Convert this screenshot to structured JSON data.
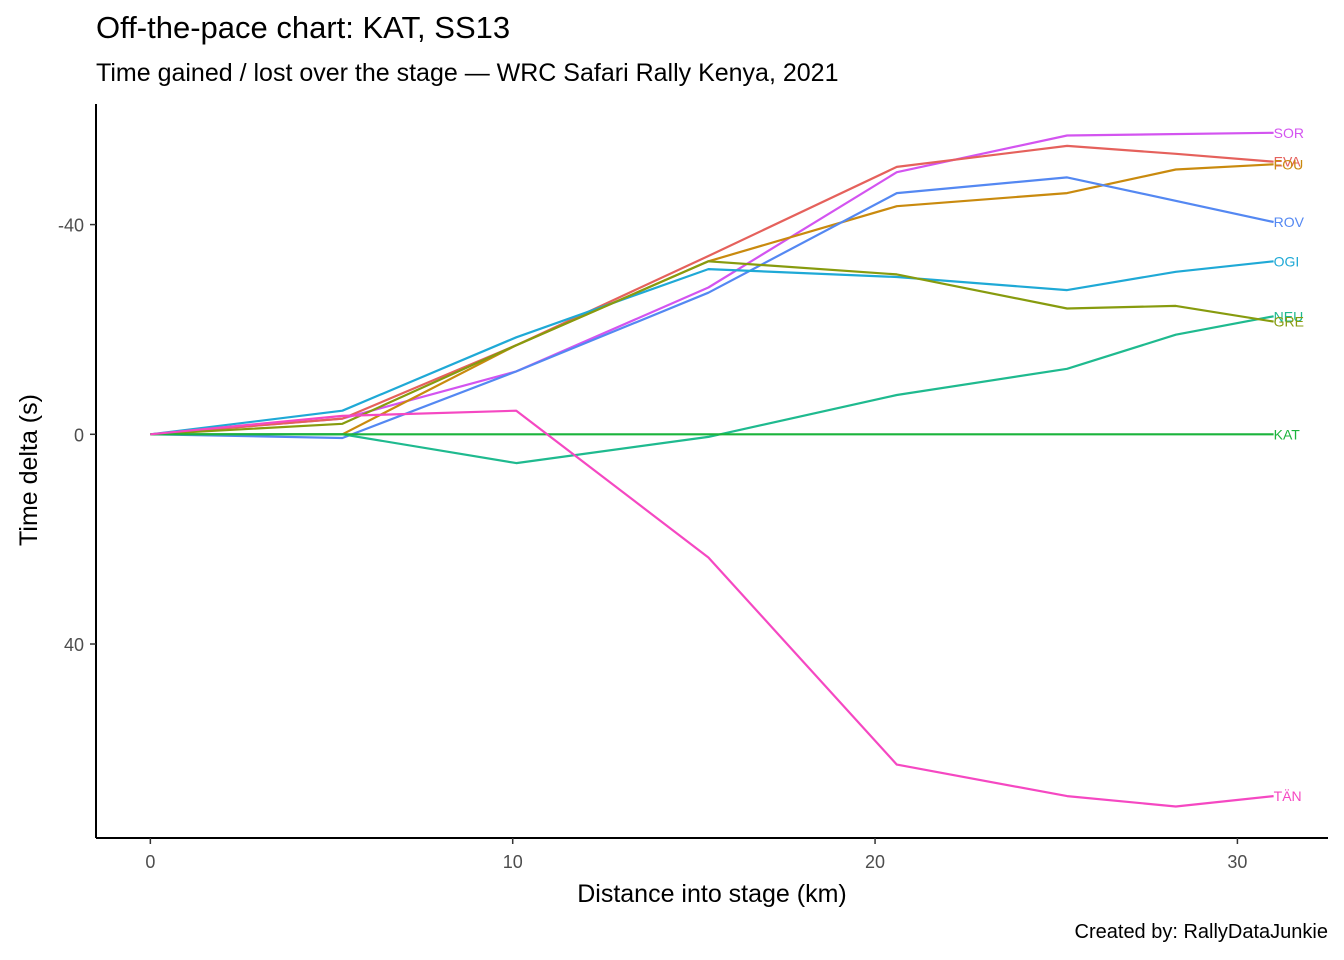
{
  "title": "Off-the-pace chart: KAT, SS13",
  "subtitle": "Time gained / lost over the stage — WRC Safari Rally Kenya, 2021",
  "caption": "Created by: RallyDataJunkie",
  "chart_data": {
    "type": "line",
    "xlabel": "Distance into stage (km)",
    "ylabel": "Time delta (s)",
    "xlim": [
      -1.5,
      32.5
    ],
    "ylim": [
      -63,
      77
    ],
    "y_reversed": true,
    "x_ticks": [
      0,
      10,
      20,
      30
    ],
    "y_ticks": [
      -40,
      0,
      40
    ],
    "grid": false,
    "legend": "end-of-line labels",
    "series": [
      {
        "name": "SOR",
        "color": "#D354F0",
        "x": [
          0,
          5.3,
          10.1,
          15.4,
          20.6,
          25.3,
          31.0
        ],
        "y": [
          0,
          -3,
          -12,
          -28,
          -50,
          -57,
          -57.5
        ]
      },
      {
        "name": "EVA",
        "color": "#E5615C",
        "x": [
          0,
          5.3,
          10.1,
          15.4,
          20.6,
          25.3,
          28.3,
          31.0
        ],
        "y": [
          0,
          -3,
          -17,
          -34,
          -51,
          -55,
          -53.5,
          -52
        ]
      },
      {
        "name": "FOU",
        "color": "#C98A0E",
        "x": [
          0,
          5.3,
          10.1,
          15.4,
          20.6,
          25.3,
          28.3,
          31.0
        ],
        "y": [
          0,
          0,
          -17,
          -33,
          -43.5,
          -46,
          -50.5,
          -51.5
        ]
      },
      {
        "name": "ROV",
        "color": "#5488F2",
        "x": [
          0,
          5.3,
          10.1,
          15.4,
          20.6,
          25.3,
          31.0
        ],
        "y": [
          0,
          0.7,
          -12,
          -27,
          -46,
          -49,
          -40.5
        ]
      },
      {
        "name": "OGI",
        "color": "#1FA9D6",
        "x": [
          0,
          5.3,
          10.1,
          15.4,
          20.6,
          25.3,
          28.3,
          31.0
        ],
        "y": [
          0,
          -4.5,
          -18.5,
          -31.5,
          -30,
          -27.5,
          -31,
          -33
        ]
      },
      {
        "name": "NEU",
        "color": "#1FBA8F",
        "x": [
          0,
          5.3,
          10.1,
          15.4,
          20.6,
          25.3,
          28.3,
          31.0
        ],
        "y": [
          0,
          0,
          5.5,
          0.5,
          -7.5,
          -12.5,
          -19,
          -22.5
        ]
      },
      {
        "name": "GRE",
        "color": "#879B0E",
        "x": [
          0,
          5.3,
          10.1,
          15.4,
          20.6,
          25.3,
          28.3,
          31.0
        ],
        "y": [
          0,
          -2,
          -17,
          -33,
          -30.5,
          -24,
          -24.5,
          -21.5
        ]
      },
      {
        "name": "KAT",
        "color": "#1BB43C",
        "x": [
          0,
          31.0
        ],
        "y": [
          0,
          0
        ]
      },
      {
        "name": "TÄN",
        "color": "#F548C2",
        "x": [
          0,
          5.3,
          10.1,
          15.4,
          20.6,
          25.3,
          28.3,
          31.0
        ],
        "y": [
          0,
          -3.5,
          -4.5,
          23.5,
          63,
          69,
          71,
          69
        ]
      }
    ]
  }
}
